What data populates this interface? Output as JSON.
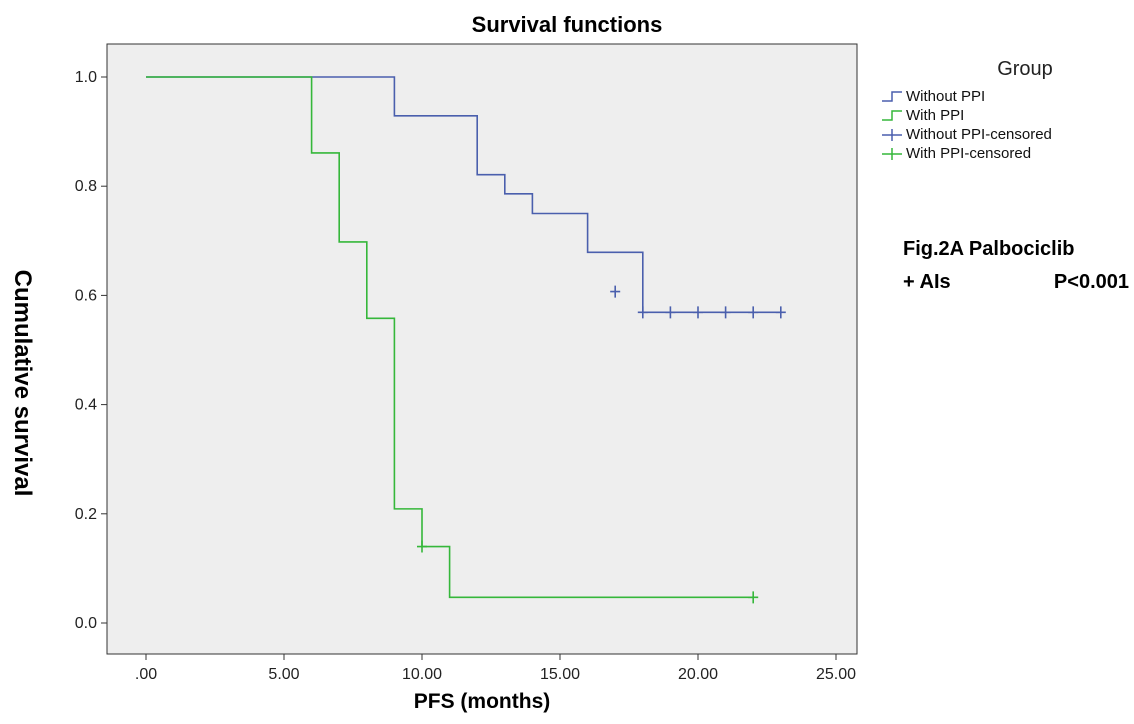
{
  "chart_data": {
    "type": "line",
    "subtype": "kaplan-meier step",
    "title": "Survival functions",
    "xlabel": "PFS (months)",
    "ylabel": "Cumulative survival",
    "xlim": [
      0,
      25
    ],
    "ylim": [
      0,
      1
    ],
    "x_ticks": [
      ".00",
      "5.00",
      "10.00",
      "15.00",
      "20.00",
      "25.00"
    ],
    "y_ticks": [
      "0.0",
      "0.2",
      "0.4",
      "0.6",
      "0.8",
      "1.0"
    ],
    "grid": false,
    "legend_title": "Group",
    "legend_position": "right",
    "legend_entries": [
      "Without PPI",
      "With PPI",
      "Without PPI-censored",
      "With PPI-censored"
    ],
    "annotation_line1": "Fig.2A Palbociclib",
    "annotation_line2_left": "+ AIs",
    "annotation_line2_right": "P<0.001",
    "series": [
      {
        "name": "Without PPI",
        "color": "#4a5fad",
        "steps": [
          [
            0,
            1.0
          ],
          [
            9,
            0.929
          ],
          [
            12,
            0.821
          ],
          [
            13,
            0.786
          ],
          [
            14,
            0.75
          ],
          [
            16,
            0.679
          ],
          [
            18,
            0.569
          ]
        ],
        "end_x": 23,
        "censored": [
          [
            17,
            0.607
          ],
          [
            18,
            0.569
          ],
          [
            19,
            0.569
          ],
          [
            20,
            0.569
          ],
          [
            21,
            0.569
          ],
          [
            22,
            0.569
          ],
          [
            23,
            0.569
          ]
        ]
      },
      {
        "name": "With PPI",
        "color": "#35b73a",
        "steps": [
          [
            0,
            1.0
          ],
          [
            6,
            0.861
          ],
          [
            7,
            0.698
          ],
          [
            8,
            0.558
          ],
          [
            9,
            0.209
          ],
          [
            10,
            0.14
          ],
          [
            11,
            0.047
          ]
        ],
        "end_x": 22,
        "censored": [
          [
            10,
            0.14
          ],
          [
            22,
            0.047
          ]
        ]
      }
    ],
    "plot_background": "#eeeeee"
  }
}
